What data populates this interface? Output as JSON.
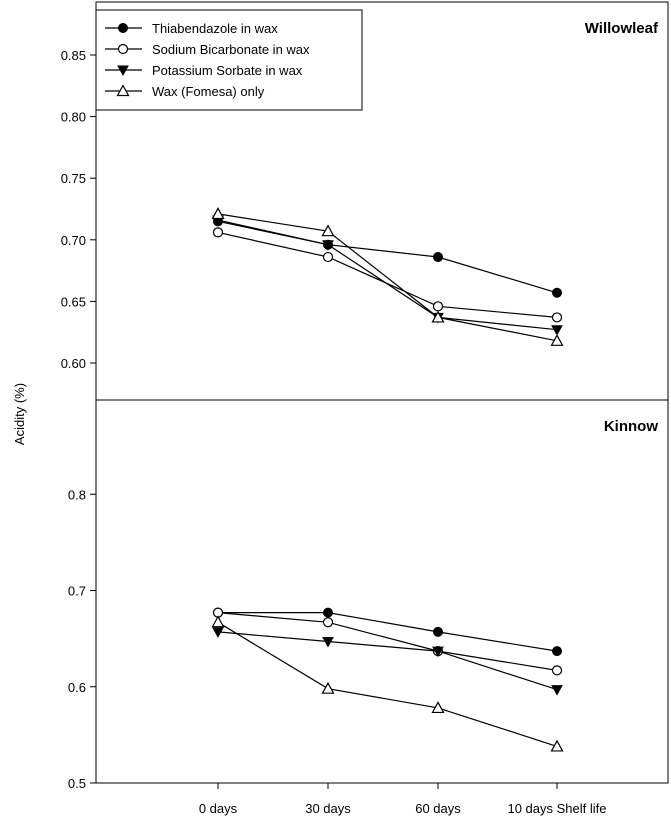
{
  "ylabel": "Acidity (%)",
  "categories": [
    "0 days",
    "30 days",
    "60 days",
    "10 days Shelf life"
  ],
  "legend": {
    "placement": "top-left",
    "entries": [
      {
        "label": "Thiabendazole in wax",
        "marker": "filled-circle"
      },
      {
        "label": "Sodium Bicarbonate in wax",
        "marker": "open-circle"
      },
      {
        "label": "Potassium Sorbate in wax",
        "marker": "filled-triangle-down"
      },
      {
        "label": "Wax (Fomesa) only",
        "marker": "open-triangle-up"
      }
    ]
  },
  "chart_data": [
    {
      "type": "line",
      "title": "Willowleaf",
      "xlabel": "",
      "ylabel": "Acidity (%)",
      "categories": [
        "0 days",
        "30 days",
        "60 days",
        "10 days Shelf life"
      ],
      "ylim": [
        0.56,
        0.88
      ],
      "yticks": [
        "0.60",
        "0.65",
        "0.70",
        "0.75",
        "0.80",
        "0.85"
      ],
      "grid": false,
      "series": [
        {
          "name": "Thiabendazole in wax",
          "marker": "filled-circle",
          "values": [
            0.715,
            0.696,
            0.686,
            0.657
          ]
        },
        {
          "name": "Sodium Bicarbonate in wax",
          "marker": "open-circle",
          "values": [
            0.706,
            0.686,
            0.646,
            0.637
          ]
        },
        {
          "name": "Potassium Sorbate in wax",
          "marker": "filled-triangle-down",
          "values": [
            0.716,
            0.696,
            0.637,
            0.627
          ]
        },
        {
          "name": "Wax (Fomesa) only",
          "marker": "open-triangle-up",
          "values": [
            0.721,
            0.707,
            0.637,
            0.618
          ]
        }
      ]
    },
    {
      "type": "line",
      "title": "Kinnow",
      "xlabel": "",
      "ylabel": "Acidity (%)",
      "categories": [
        "0 days",
        "30 days",
        "60 days",
        "10 days Shelf life"
      ],
      "ylim": [
        0.49,
        0.88
      ],
      "yticks": [
        "0.5",
        "0.6",
        "0.7",
        "0.8"
      ],
      "grid": false,
      "series": [
        {
          "name": "Thiabendazole in wax",
          "marker": "filled-circle",
          "values": [
            0.677,
            0.677,
            0.657,
            0.637
          ]
        },
        {
          "name": "Sodium Bicarbonate in wax",
          "marker": "open-circle",
          "values": [
            0.677,
            0.667,
            0.637,
            0.617
          ]
        },
        {
          "name": "Potassium Sorbate in wax",
          "marker": "filled-triangle-down",
          "values": [
            0.657,
            0.647,
            0.637,
            0.597
          ]
        },
        {
          "name": "Wax (Fomesa) only",
          "marker": "open-triangle-up",
          "values": [
            0.667,
            0.598,
            0.578,
            0.538
          ]
        }
      ]
    }
  ]
}
